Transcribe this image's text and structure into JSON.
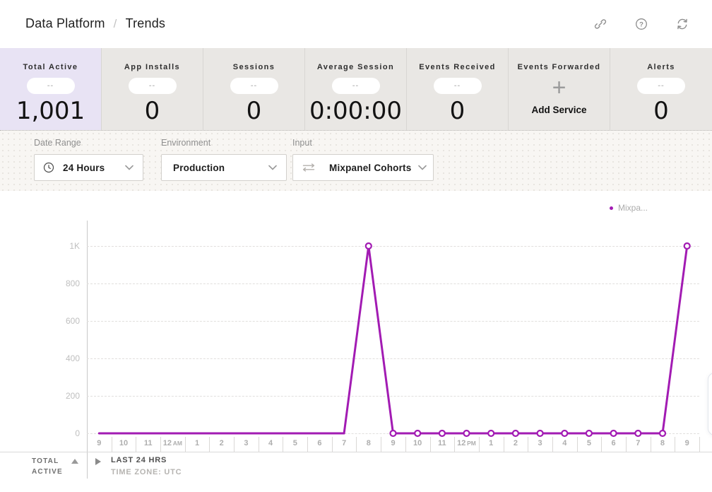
{
  "header": {
    "breadcrumb": {
      "parent": "Data Platform",
      "separator": "/",
      "current": "Trends"
    },
    "icons": [
      "link-icon",
      "help-icon",
      "refresh-icon"
    ]
  },
  "metrics": {
    "placeholder": "--",
    "cards": [
      {
        "label": "Total Active",
        "value": "1,001",
        "highlighted": true
      },
      {
        "label": "App Installs",
        "value": "0"
      },
      {
        "label": "Sessions",
        "value": "0"
      },
      {
        "label": "Average Session",
        "value": "0:00:00"
      },
      {
        "label": "Events Received",
        "value": "0"
      },
      {
        "label": "Events Forwarded",
        "icon": "plus-icon",
        "action_label": "Add Service"
      },
      {
        "label": "Alerts",
        "value": "0"
      }
    ]
  },
  "filters": {
    "date_range": {
      "label": "Date Range",
      "value": "24 Hours",
      "icon": "clock-icon"
    },
    "environment": {
      "label": "Environment",
      "value": "Production"
    },
    "input": {
      "label": "Input",
      "value": "Mixpanel Cohorts",
      "icon": "swap-arrows-icon"
    }
  },
  "chart_data": {
    "type": "line",
    "title": "",
    "legend_position": "top-right",
    "legend": [
      {
        "label": "Mixpa...",
        "color": "#a21bb3"
      }
    ],
    "x_labels": [
      "9",
      "10",
      "11",
      "12 AM",
      "1",
      "2",
      "3",
      "4",
      "5",
      "6",
      "7",
      "8",
      "9",
      "10",
      "11",
      "12 PM",
      "1",
      "2",
      "3",
      "4",
      "5",
      "6",
      "7",
      "8",
      "9"
    ],
    "series": [
      {
        "name": "Mixpanel Cohorts",
        "color": "#a21bb3",
        "values": [
          0,
          0,
          0,
          0,
          0,
          0,
          0,
          0,
          0,
          0,
          0,
          1000,
          0,
          0,
          0,
          0,
          0,
          0,
          0,
          0,
          0,
          0,
          0,
          0,
          1000
        ],
        "marker_start_index": 11
      }
    ],
    "y_ticks": [
      0,
      200,
      400,
      600,
      800,
      1000
    ],
    "y_tick_labels": [
      "0",
      "200",
      "400",
      "600",
      "800",
      "1K"
    ],
    "ylim": [
      0,
      1000
    ],
    "grid": "horizontal-dashed"
  },
  "footer": {
    "metric_label_line1": "TOTAL",
    "metric_label_line2": "ACTIVE",
    "range_label": "LAST 24 HRS",
    "timezone_label": "TIME ZONE: UTC"
  },
  "colors": {
    "accent_purple": "#a21bb3",
    "highlight_card_bg": "#e8e3f4",
    "cards_row_bg": "#e9e7e4"
  }
}
